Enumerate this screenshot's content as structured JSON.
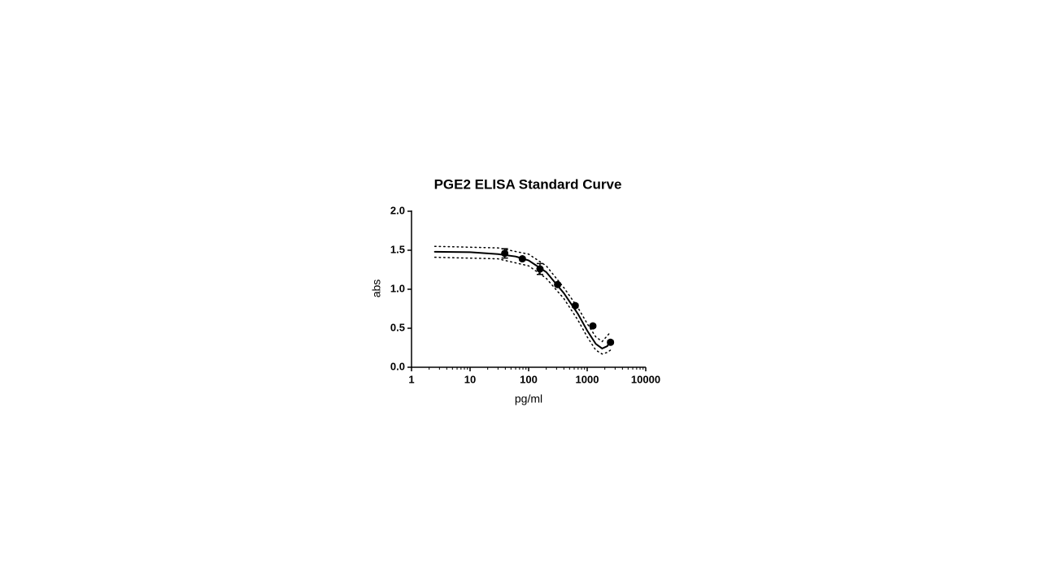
{
  "chart_data": {
    "type": "scatter",
    "title": "PGE2 ELISA Standard Curve",
    "xlabel": "pg/ml",
    "ylabel": "abs",
    "log_x": true,
    "x_minor_ticks": true,
    "xlim": [
      1,
      10000
    ],
    "xticks": [
      1,
      10,
      100,
      1000,
      10000
    ],
    "ylim": [
      0,
      2
    ],
    "yticks": [
      {
        "value": 0,
        "label": "0.0"
      },
      0.5,
      {
        "value": 1,
        "label": "1.0"
      },
      1.5,
      {
        "value": 2,
        "label": "2.0"
      }
    ],
    "series": [
      {
        "type": "scatter",
        "color": "#000000",
        "x": [
          39.1,
          78.1,
          156.25,
          312.5,
          625,
          1250,
          2500
        ],
        "values": [
          1.46,
          1.39,
          1.26,
          1.06,
          0.79,
          0.53,
          0.32
        ],
        "errors": [
          0.06,
          0.02,
          0.07,
          0.02,
          0.02,
          0.02,
          0.02
        ]
      },
      {
        "type": "line",
        "color": "#000000",
        "dashed": false,
        "x": [
          2.5,
          10,
          30,
          60,
          100,
          200,
          400,
          700,
          1000,
          1400,
          1800,
          2200,
          2500
        ],
        "values": [
          1.48,
          1.475,
          1.45,
          1.42,
          1.37,
          1.22,
          0.95,
          0.68,
          0.47,
          0.3,
          0.24,
          0.27,
          0.33
        ]
      },
      {
        "type": "line",
        "color": "#000000",
        "dashed": true,
        "x": [
          2.5,
          30,
          100,
          200,
          400,
          700,
          1000,
          1400,
          1800,
          2500
        ],
        "values": [
          1.55,
          1.53,
          1.45,
          1.3,
          1.02,
          0.76,
          0.56,
          0.39,
          0.33,
          0.45
        ]
      },
      {
        "type": "line",
        "color": "#000000",
        "dashed": true,
        "x": [
          2.5,
          30,
          100,
          200,
          400,
          700,
          1000,
          1400,
          1800,
          2200,
          2500
        ],
        "values": [
          1.41,
          1.39,
          1.3,
          1.14,
          0.88,
          0.6,
          0.39,
          0.22,
          0.17,
          0.19,
          0.22
        ]
      }
    ]
  }
}
